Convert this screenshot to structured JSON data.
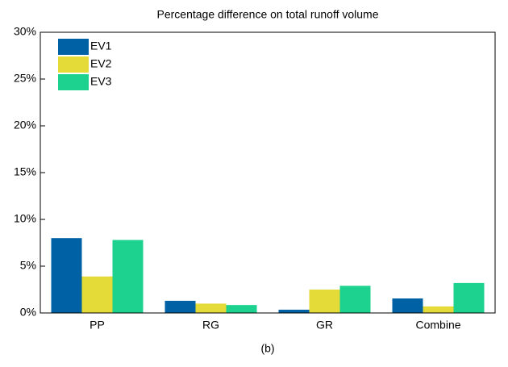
{
  "chart_data": {
    "type": "bar",
    "title": "Percentage difference on total runoff volume",
    "xlabel": "(b)",
    "categories": [
      "PP",
      "RG",
      "GR",
      "Combine"
    ],
    "series": [
      {
        "name": "EV1",
        "color": "#0062a5",
        "values": [
          8.0,
          1.3,
          0.35,
          1.55
        ]
      },
      {
        "name": "EV2",
        "color": "#e4da38",
        "values": [
          3.9,
          1.0,
          2.5,
          0.7
        ]
      },
      {
        "name": "EV3",
        "color": "#1dd28f",
        "values": [
          7.8,
          0.85,
          2.9,
          3.2
        ]
      }
    ],
    "ylim": [
      0,
      30
    ],
    "yticks": [
      {
        "value": 0,
        "label": "0%"
      },
      {
        "value": 5,
        "label": "5%"
      },
      {
        "value": 10,
        "label": "10%"
      },
      {
        "value": 15,
        "label": "15%"
      },
      {
        "value": 20,
        "label": "20%"
      },
      {
        "value": 25,
        "label": "25%"
      },
      {
        "value": 30,
        "label": "30%"
      }
    ],
    "legend": "upper left",
    "grid": false
  }
}
